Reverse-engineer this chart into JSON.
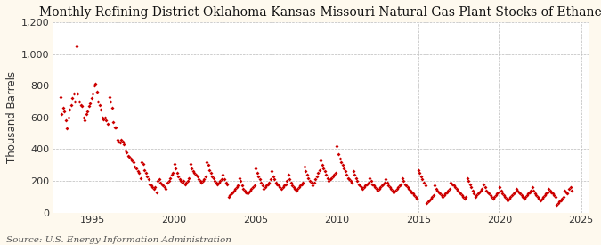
{
  "title": "Monthly Refining District Oklahoma-Kansas-Missouri Natural Gas Plant Stocks of Ethane",
  "ylabel": "Thousand Barrels",
  "source": "Source: U.S. Energy Information Administration",
  "background_color": "#fef9ee",
  "plot_background_color": "#ffffff",
  "marker_color": "#cc0000",
  "marker": "D",
  "marker_size": 4,
  "xlim": [
    1992.5,
    2025.5
  ],
  "ylim": [
    0,
    1200
  ],
  "yticks": [
    0,
    200,
    400,
    600,
    800,
    1000,
    1200
  ],
  "ytick_labels": [
    "0",
    "200",
    "400",
    "600",
    "800",
    "1,000",
    "1,200"
  ],
  "xticks": [
    1995,
    2000,
    2005,
    2010,
    2015,
    2020,
    2025
  ],
  "grid_color": "#bbbbbb",
  "grid_style": "--",
  "title_fontsize": 10,
  "label_fontsize": 8.5,
  "tick_fontsize": 8,
  "source_fontsize": 7.5,
  "data": [
    [
      1993.0,
      730
    ],
    [
      1993.083,
      620
    ],
    [
      1993.167,
      660
    ],
    [
      1993.25,
      640
    ],
    [
      1993.333,
      580
    ],
    [
      1993.417,
      530
    ],
    [
      1993.5,
      600
    ],
    [
      1993.583,
      650
    ],
    [
      1993.667,
      680
    ],
    [
      1993.75,
      720
    ],
    [
      1993.833,
      750
    ],
    [
      1993.917,
      700
    ],
    [
      1994.0,
      1050
    ],
    [
      1994.083,
      750
    ],
    [
      1994.167,
      700
    ],
    [
      1994.25,
      680
    ],
    [
      1994.333,
      670
    ],
    [
      1994.417,
      600
    ],
    [
      1994.5,
      580
    ],
    [
      1994.583,
      620
    ],
    [
      1994.667,
      640
    ],
    [
      1994.75,
      670
    ],
    [
      1994.833,
      690
    ],
    [
      1994.917,
      720
    ],
    [
      1995.0,
      750
    ],
    [
      1995.083,
      800
    ],
    [
      1995.167,
      810
    ],
    [
      1995.25,
      760
    ],
    [
      1995.333,
      700
    ],
    [
      1995.417,
      680
    ],
    [
      1995.5,
      650
    ],
    [
      1995.583,
      600
    ],
    [
      1995.667,
      590
    ],
    [
      1995.75,
      600
    ],
    [
      1995.833,
      580
    ],
    [
      1995.917,
      560
    ],
    [
      1996.0,
      730
    ],
    [
      1996.083,
      700
    ],
    [
      1996.167,
      660
    ],
    [
      1996.25,
      570
    ],
    [
      1996.333,
      540
    ],
    [
      1996.417,
      540
    ],
    [
      1996.5,
      460
    ],
    [
      1996.583,
      450
    ],
    [
      1996.667,
      440
    ],
    [
      1996.75,
      460
    ],
    [
      1996.833,
      450
    ],
    [
      1996.917,
      430
    ],
    [
      1997.0,
      390
    ],
    [
      1997.083,
      380
    ],
    [
      1997.167,
      360
    ],
    [
      1997.25,
      350
    ],
    [
      1997.333,
      340
    ],
    [
      1997.417,
      330
    ],
    [
      1997.5,
      320
    ],
    [
      1997.583,
      290
    ],
    [
      1997.667,
      280
    ],
    [
      1997.75,
      260
    ],
    [
      1997.833,
      250
    ],
    [
      1997.917,
      220
    ],
    [
      1998.0,
      320
    ],
    [
      1998.083,
      310
    ],
    [
      1998.167,
      270
    ],
    [
      1998.25,
      250
    ],
    [
      1998.333,
      230
    ],
    [
      1998.417,
      210
    ],
    [
      1998.5,
      180
    ],
    [
      1998.583,
      170
    ],
    [
      1998.667,
      160
    ],
    [
      1998.75,
      150
    ],
    [
      1998.833,
      160
    ],
    [
      1998.917,
      130
    ],
    [
      1999.0,
      200
    ],
    [
      1999.083,
      210
    ],
    [
      1999.167,
      190
    ],
    [
      1999.25,
      180
    ],
    [
      1999.333,
      170
    ],
    [
      1999.417,
      160
    ],
    [
      1999.5,
      150
    ],
    [
      1999.583,
      190
    ],
    [
      1999.667,
      200
    ],
    [
      1999.75,
      220
    ],
    [
      1999.833,
      240
    ],
    [
      1999.917,
      250
    ],
    [
      2000.0,
      310
    ],
    [
      2000.083,
      280
    ],
    [
      2000.167,
      250
    ],
    [
      2000.25,
      230
    ],
    [
      2000.333,
      210
    ],
    [
      2000.417,
      200
    ],
    [
      2000.5,
      190
    ],
    [
      2000.583,
      200
    ],
    [
      2000.667,
      180
    ],
    [
      2000.75,
      190
    ],
    [
      2000.833,
      200
    ],
    [
      2000.917,
      220
    ],
    [
      2001.0,
      310
    ],
    [
      2001.083,
      280
    ],
    [
      2001.167,
      260
    ],
    [
      2001.25,
      250
    ],
    [
      2001.333,
      240
    ],
    [
      2001.417,
      230
    ],
    [
      2001.5,
      210
    ],
    [
      2001.583,
      200
    ],
    [
      2001.667,
      190
    ],
    [
      2001.75,
      200
    ],
    [
      2001.833,
      210
    ],
    [
      2001.917,
      230
    ],
    [
      2002.0,
      320
    ],
    [
      2002.083,
      300
    ],
    [
      2002.167,
      270
    ],
    [
      2002.25,
      250
    ],
    [
      2002.333,
      230
    ],
    [
      2002.417,
      220
    ],
    [
      2002.5,
      200
    ],
    [
      2002.583,
      190
    ],
    [
      2002.667,
      180
    ],
    [
      2002.75,
      190
    ],
    [
      2002.833,
      200
    ],
    [
      2002.917,
      210
    ],
    [
      2003.0,
      240
    ],
    [
      2003.083,
      210
    ],
    [
      2003.167,
      190
    ],
    [
      2003.25,
      180
    ],
    [
      2003.333,
      100
    ],
    [
      2003.417,
      110
    ],
    [
      2003.5,
      120
    ],
    [
      2003.583,
      130
    ],
    [
      2003.667,
      140
    ],
    [
      2003.75,
      150
    ],
    [
      2003.833,
      160
    ],
    [
      2003.917,
      170
    ],
    [
      2004.0,
      220
    ],
    [
      2004.083,
      200
    ],
    [
      2004.167,
      170
    ],
    [
      2004.25,
      150
    ],
    [
      2004.333,
      140
    ],
    [
      2004.417,
      130
    ],
    [
      2004.5,
      120
    ],
    [
      2004.583,
      130
    ],
    [
      2004.667,
      140
    ],
    [
      2004.75,
      150
    ],
    [
      2004.833,
      160
    ],
    [
      2004.917,
      170
    ],
    [
      2005.0,
      280
    ],
    [
      2005.083,
      250
    ],
    [
      2005.167,
      230
    ],
    [
      2005.25,
      210
    ],
    [
      2005.333,
      190
    ],
    [
      2005.417,
      170
    ],
    [
      2005.5,
      150
    ],
    [
      2005.583,
      160
    ],
    [
      2005.667,
      170
    ],
    [
      2005.75,
      180
    ],
    [
      2005.833,
      190
    ],
    [
      2005.917,
      210
    ],
    [
      2006.0,
      260
    ],
    [
      2006.083,
      230
    ],
    [
      2006.167,
      210
    ],
    [
      2006.25,
      190
    ],
    [
      2006.333,
      180
    ],
    [
      2006.417,
      170
    ],
    [
      2006.5,
      160
    ],
    [
      2006.583,
      150
    ],
    [
      2006.667,
      160
    ],
    [
      2006.75,
      170
    ],
    [
      2006.833,
      180
    ],
    [
      2006.917,
      200
    ],
    [
      2007.0,
      240
    ],
    [
      2007.083,
      210
    ],
    [
      2007.167,
      190
    ],
    [
      2007.25,
      170
    ],
    [
      2007.333,
      160
    ],
    [
      2007.417,
      150
    ],
    [
      2007.5,
      140
    ],
    [
      2007.583,
      150
    ],
    [
      2007.667,
      160
    ],
    [
      2007.75,
      170
    ],
    [
      2007.833,
      180
    ],
    [
      2007.917,
      190
    ],
    [
      2008.0,
      290
    ],
    [
      2008.083,
      260
    ],
    [
      2008.167,
      240
    ],
    [
      2008.25,
      220
    ],
    [
      2008.333,
      200
    ],
    [
      2008.417,
      190
    ],
    [
      2008.5,
      170
    ],
    [
      2008.583,
      190
    ],
    [
      2008.667,
      210
    ],
    [
      2008.75,
      230
    ],
    [
      2008.833,
      250
    ],
    [
      2008.917,
      270
    ],
    [
      2009.0,
      330
    ],
    [
      2009.083,
      300
    ],
    [
      2009.167,
      280
    ],
    [
      2009.25,
      260
    ],
    [
      2009.333,
      240
    ],
    [
      2009.417,
      220
    ],
    [
      2009.5,
      200
    ],
    [
      2009.583,
      210
    ],
    [
      2009.667,
      220
    ],
    [
      2009.75,
      230
    ],
    [
      2009.833,
      240
    ],
    [
      2009.917,
      250
    ],
    [
      2010.0,
      420
    ],
    [
      2010.083,
      370
    ],
    [
      2010.167,
      340
    ],
    [
      2010.25,
      320
    ],
    [
      2010.333,
      300
    ],
    [
      2010.417,
      280
    ],
    [
      2010.5,
      260
    ],
    [
      2010.583,
      240
    ],
    [
      2010.667,
      220
    ],
    [
      2010.75,
      210
    ],
    [
      2010.833,
      200
    ],
    [
      2010.917,
      190
    ],
    [
      2011.0,
      260
    ],
    [
      2011.083,
      240
    ],
    [
      2011.167,
      220
    ],
    [
      2011.25,
      200
    ],
    [
      2011.333,
      180
    ],
    [
      2011.417,
      170
    ],
    [
      2011.5,
      160
    ],
    [
      2011.583,
      150
    ],
    [
      2011.667,
      160
    ],
    [
      2011.75,
      170
    ],
    [
      2011.833,
      180
    ],
    [
      2011.917,
      190
    ],
    [
      2012.0,
      220
    ],
    [
      2012.083,
      200
    ],
    [
      2012.167,
      180
    ],
    [
      2012.25,
      170
    ],
    [
      2012.333,
      160
    ],
    [
      2012.417,
      150
    ],
    [
      2012.5,
      140
    ],
    [
      2012.583,
      150
    ],
    [
      2012.667,
      160
    ],
    [
      2012.75,
      170
    ],
    [
      2012.833,
      180
    ],
    [
      2012.917,
      190
    ],
    [
      2013.0,
      210
    ],
    [
      2013.083,
      190
    ],
    [
      2013.167,
      170
    ],
    [
      2013.25,
      160
    ],
    [
      2013.333,
      150
    ],
    [
      2013.417,
      140
    ],
    [
      2013.5,
      130
    ],
    [
      2013.583,
      140
    ],
    [
      2013.667,
      150
    ],
    [
      2013.75,
      160
    ],
    [
      2013.833,
      170
    ],
    [
      2013.917,
      180
    ],
    [
      2014.0,
      220
    ],
    [
      2014.083,
      200
    ],
    [
      2014.167,
      180
    ],
    [
      2014.25,
      170
    ],
    [
      2014.333,
      160
    ],
    [
      2014.417,
      150
    ],
    [
      2014.5,
      140
    ],
    [
      2014.583,
      130
    ],
    [
      2014.667,
      120
    ],
    [
      2014.75,
      110
    ],
    [
      2014.833,
      100
    ],
    [
      2014.917,
      90
    ],
    [
      2015.0,
      270
    ],
    [
      2015.083,
      250
    ],
    [
      2015.167,
      230
    ],
    [
      2015.25,
      210
    ],
    [
      2015.333,
      190
    ],
    [
      2015.417,
      170
    ],
    [
      2015.5,
      60
    ],
    [
      2015.583,
      70
    ],
    [
      2015.667,
      80
    ],
    [
      2015.75,
      90
    ],
    [
      2015.833,
      100
    ],
    [
      2015.917,
      110
    ],
    [
      2016.0,
      170
    ],
    [
      2016.083,
      150
    ],
    [
      2016.167,
      140
    ],
    [
      2016.25,
      130
    ],
    [
      2016.333,
      120
    ],
    [
      2016.417,
      110
    ],
    [
      2016.5,
      100
    ],
    [
      2016.583,
      110
    ],
    [
      2016.667,
      120
    ],
    [
      2016.75,
      130
    ],
    [
      2016.833,
      140
    ],
    [
      2016.917,
      150
    ],
    [
      2017.0,
      190
    ],
    [
      2017.083,
      180
    ],
    [
      2017.167,
      170
    ],
    [
      2017.25,
      160
    ],
    [
      2017.333,
      150
    ],
    [
      2017.417,
      140
    ],
    [
      2017.5,
      130
    ],
    [
      2017.583,
      120
    ],
    [
      2017.667,
      110
    ],
    [
      2017.75,
      100
    ],
    [
      2017.833,
      90
    ],
    [
      2017.917,
      100
    ],
    [
      2018.0,
      220
    ],
    [
      2018.083,
      200
    ],
    [
      2018.167,
      180
    ],
    [
      2018.25,
      160
    ],
    [
      2018.333,
      140
    ],
    [
      2018.417,
      120
    ],
    [
      2018.5,
      100
    ],
    [
      2018.583,
      110
    ],
    [
      2018.667,
      120
    ],
    [
      2018.75,
      130
    ],
    [
      2018.833,
      140
    ],
    [
      2018.917,
      150
    ],
    [
      2019.0,
      180
    ],
    [
      2019.083,
      160
    ],
    [
      2019.167,
      140
    ],
    [
      2019.25,
      130
    ],
    [
      2019.333,
      120
    ],
    [
      2019.417,
      110
    ],
    [
      2019.5,
      100
    ],
    [
      2019.583,
      90
    ],
    [
      2019.667,
      100
    ],
    [
      2019.75,
      110
    ],
    [
      2019.833,
      120
    ],
    [
      2019.917,
      130
    ],
    [
      2020.0,
      160
    ],
    [
      2020.083,
      140
    ],
    [
      2020.167,
      120
    ],
    [
      2020.25,
      110
    ],
    [
      2020.333,
      100
    ],
    [
      2020.417,
      90
    ],
    [
      2020.5,
      80
    ],
    [
      2020.583,
      90
    ],
    [
      2020.667,
      100
    ],
    [
      2020.75,
      110
    ],
    [
      2020.833,
      120
    ],
    [
      2020.917,
      130
    ],
    [
      2021.0,
      150
    ],
    [
      2021.083,
      140
    ],
    [
      2021.167,
      130
    ],
    [
      2021.25,
      120
    ],
    [
      2021.333,
      110
    ],
    [
      2021.417,
      100
    ],
    [
      2021.5,
      90
    ],
    [
      2021.583,
      100
    ],
    [
      2021.667,
      110
    ],
    [
      2021.75,
      120
    ],
    [
      2021.833,
      130
    ],
    [
      2021.917,
      140
    ],
    [
      2022.0,
      160
    ],
    [
      2022.083,
      140
    ],
    [
      2022.167,
      120
    ],
    [
      2022.25,
      110
    ],
    [
      2022.333,
      100
    ],
    [
      2022.417,
      90
    ],
    [
      2022.5,
      80
    ],
    [
      2022.583,
      90
    ],
    [
      2022.667,
      100
    ],
    [
      2022.75,
      110
    ],
    [
      2022.833,
      120
    ],
    [
      2022.917,
      130
    ],
    [
      2023.0,
      150
    ],
    [
      2023.083,
      140
    ],
    [
      2023.167,
      130
    ],
    [
      2023.25,
      120
    ],
    [
      2023.333,
      110
    ],
    [
      2023.417,
      100
    ],
    [
      2023.5,
      50
    ],
    [
      2023.583,
      60
    ],
    [
      2023.667,
      70
    ],
    [
      2023.75,
      80
    ],
    [
      2023.833,
      90
    ],
    [
      2023.917,
      100
    ],
    [
      2024.0,
      140
    ],
    [
      2024.083,
      130
    ],
    [
      2024.167,
      120
    ],
    [
      2024.25,
      150
    ],
    [
      2024.333,
      160
    ],
    [
      2024.417,
      140
    ]
  ]
}
